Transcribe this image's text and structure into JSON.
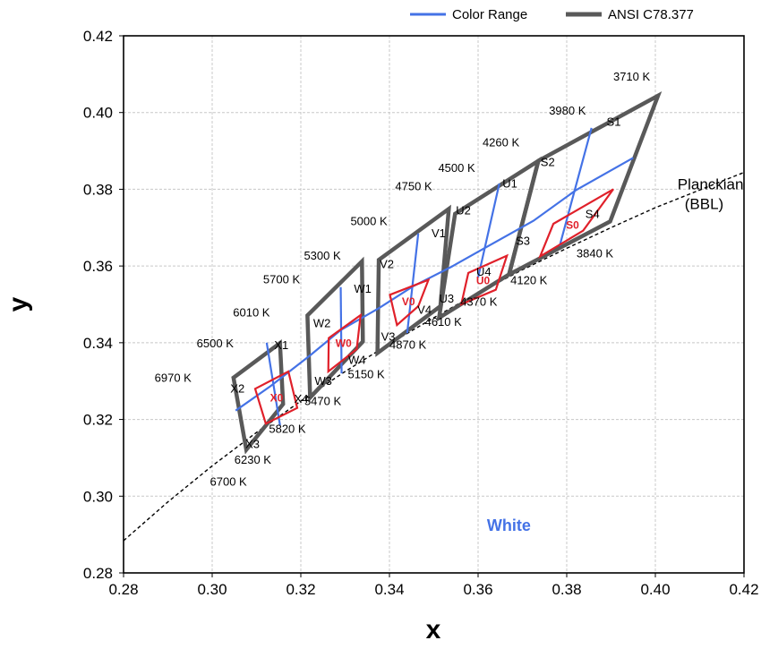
{
  "chart_data": {
    "type": "line",
    "xlabel": "x",
    "ylabel": "y",
    "xlim": [
      0.28,
      0.42
    ],
    "ylim": [
      0.28,
      0.42
    ],
    "xticks": [
      0.28,
      0.3,
      0.32,
      0.34,
      0.36,
      0.38,
      0.4,
      0.42
    ],
    "yticks": [
      0.28,
      0.3,
      0.32,
      0.34,
      0.36,
      0.38,
      0.4,
      0.42
    ],
    "xtick_labels": [
      "0.28",
      "0.30",
      "0.32",
      "0.34",
      "0.36",
      "0.38",
      "0.40",
      "0.42"
    ],
    "ytick_labels": [
      "0.28",
      "0.30",
      "0.32",
      "0.34",
      "0.36",
      "0.38",
      "0.40",
      "0.42"
    ],
    "grid": true,
    "legend_position": "top-right",
    "legend": [
      {
        "label": "Color Range",
        "color": "#4472e6"
      },
      {
        "label": "ANSI C78.377",
        "color": "#595959"
      }
    ],
    "colors": {
      "ansi": "#595959",
      "range": "#4472e6",
      "bin": "#e0202a",
      "planckian": "#000000"
    },
    "region_label": {
      "text": "White",
      "color": "#4472e6",
      "x": 0.362,
      "y": 0.291
    },
    "planckian_label": {
      "line1": "Planckian",
      "line2": "(BBL)",
      "x": 0.405,
      "y": 0.38
    },
    "planckian": [
      [
        0.28,
        0.2884
      ],
      [
        0.29,
        0.2985
      ],
      [
        0.3,
        0.3079
      ],
      [
        0.31,
        0.3166
      ],
      [
        0.32,
        0.3248
      ],
      [
        0.33,
        0.3325
      ],
      [
        0.34,
        0.3397
      ],
      [
        0.35,
        0.3465
      ],
      [
        0.36,
        0.353
      ],
      [
        0.37,
        0.359
      ],
      [
        0.38,
        0.3646
      ],
      [
        0.39,
        0.37
      ],
      [
        0.4,
        0.3752
      ],
      [
        0.41,
        0.3798
      ],
      [
        0.42,
        0.3844
      ]
    ],
    "ansi_quads": [
      {
        "name": "X",
        "points": [
          [
            0.3048,
            0.3309
          ],
          [
            0.3153,
            0.3399
          ],
          [
            0.316,
            0.324
          ],
          [
            0.3077,
            0.3121
          ]
        ]
      },
      {
        "name": "W",
        "points": [
          [
            0.3215,
            0.3471
          ],
          [
            0.3338,
            0.3612
          ],
          [
            0.334,
            0.3403
          ],
          [
            0.3221,
            0.3257
          ]
        ]
      },
      {
        "name": "V",
        "points": [
          [
            0.3376,
            0.3616
          ],
          [
            0.3534,
            0.3749
          ],
          [
            0.3515,
            0.3495
          ],
          [
            0.3373,
            0.3373
          ]
        ]
      },
      {
        "name": "U",
        "points": [
          [
            0.3548,
            0.3736
          ],
          [
            0.3736,
            0.3874
          ],
          [
            0.367,
            0.3578
          ],
          [
            0.3512,
            0.3465
          ]
        ]
      },
      {
        "name": "S",
        "points": [
          [
            0.3736,
            0.3874
          ],
          [
            0.4006,
            0.4044
          ],
          [
            0.3898,
            0.3716
          ],
          [
            0.367,
            0.3578
          ]
        ]
      }
    ],
    "color_range_line": [
      [
        0.3053,
        0.3223
      ],
      [
        0.3132,
        0.3287
      ],
      [
        0.3221,
        0.3367
      ],
      [
        0.329,
        0.3433
      ],
      [
        0.3376,
        0.349
      ],
      [
        0.3453,
        0.3547
      ],
      [
        0.354,
        0.3598
      ],
      [
        0.362,
        0.365
      ],
      [
        0.3725,
        0.3718
      ],
      [
        0.382,
        0.3797
      ],
      [
        0.395,
        0.3882
      ]
    ],
    "blue_cross_lines": [
      [
        [
          0.3123,
          0.34
        ],
        [
          0.3153,
          0.3185
        ]
      ],
      [
        [
          0.329,
          0.3545
        ],
        [
          0.3292,
          0.332
        ]
      ],
      [
        [
          0.3465,
          0.3685
        ],
        [
          0.344,
          0.3425
        ]
      ],
      [
        [
          0.3648,
          0.3815
        ],
        [
          0.36,
          0.357
        ]
      ],
      [
        [
          0.3856,
          0.396
        ],
        [
          0.3784,
          0.3652
        ]
      ]
    ],
    "bins": [
      {
        "name": "X0",
        "points": [
          [
            0.3097,
            0.328
          ],
          [
            0.3172,
            0.3325
          ],
          [
            0.3192,
            0.323
          ],
          [
            0.3121,
            0.3189
          ]
        ]
      },
      {
        "name": "W0",
        "points": [
          [
            0.3263,
            0.3412
          ],
          [
            0.3335,
            0.3472
          ],
          [
            0.3326,
            0.3383
          ],
          [
            0.3262,
            0.3325
          ]
        ]
      },
      {
        "name": "V0",
        "points": [
          [
            0.3401,
            0.3525
          ],
          [
            0.3488,
            0.3564
          ],
          [
            0.3465,
            0.3495
          ],
          [
            0.3417,
            0.3446
          ]
        ]
      },
      {
        "name": "U0",
        "points": [
          [
            0.3578,
            0.3582
          ],
          [
            0.3665,
            0.3627
          ],
          [
            0.364,
            0.3538
          ],
          [
            0.3562,
            0.35
          ]
        ]
      },
      {
        "name": "S0",
        "points": [
          [
            0.377,
            0.371
          ],
          [
            0.3905,
            0.38
          ],
          [
            0.3837,
            0.3692
          ],
          [
            0.374,
            0.3625
          ]
        ]
      }
    ],
    "quad_labels": [
      {
        "text": "X1",
        "x": 0.314,
        "y": 0.3383
      },
      {
        "text": "X2",
        "x": 0.3041,
        "y": 0.327
      },
      {
        "text": "X3",
        "x": 0.3075,
        "y": 0.3125
      },
      {
        "text": "X4",
        "x": 0.3185,
        "y": 0.3243
      },
      {
        "text": "W1",
        "x": 0.332,
        "y": 0.353
      },
      {
        "text": "W2",
        "x": 0.3228,
        "y": 0.344
      },
      {
        "text": "W3",
        "x": 0.3231,
        "y": 0.329
      },
      {
        "text": "W4",
        "x": 0.3307,
        "y": 0.3345
      },
      {
        "text": "V1",
        "x": 0.3495,
        "y": 0.3675
      },
      {
        "text": "V2",
        "x": 0.3378,
        "y": 0.3595
      },
      {
        "text": "V3",
        "x": 0.3381,
        "y": 0.3405
      },
      {
        "text": "V4",
        "x": 0.3463,
        "y": 0.3475
      },
      {
        "text": "U1",
        "x": 0.3655,
        "y": 0.3805
      },
      {
        "text": "U2",
        "x": 0.355,
        "y": 0.3735
      },
      {
        "text": "U3",
        "x": 0.3512,
        "y": 0.3505
      },
      {
        "text": "U4",
        "x": 0.3596,
        "y": 0.3575
      },
      {
        "text": "S1",
        "x": 0.389,
        "y": 0.3965
      },
      {
        "text": "S2",
        "x": 0.3741,
        "y": 0.386
      },
      {
        "text": "S3",
        "x": 0.3685,
        "y": 0.3655
      },
      {
        "text": "S4",
        "x": 0.3842,
        "y": 0.3725
      }
    ],
    "cct_labels": [
      {
        "text": "3710 K",
        "x": 0.3905,
        "y": 0.4083
      },
      {
        "text": "3980 K",
        "x": 0.376,
        "y": 0.3995
      },
      {
        "text": "4260 K",
        "x": 0.361,
        "y": 0.3912
      },
      {
        "text": "4500 K",
        "x": 0.351,
        "y": 0.3845
      },
      {
        "text": "4750 K",
        "x": 0.3413,
        "y": 0.3797
      },
      {
        "text": "5000 K",
        "x": 0.3312,
        "y": 0.3707
      },
      {
        "text": "5300 K",
        "x": 0.3207,
        "y": 0.3617
      },
      {
        "text": "5700 K",
        "x": 0.3115,
        "y": 0.3555
      },
      {
        "text": "6010 K",
        "x": 0.3047,
        "y": 0.3468
      },
      {
        "text": "6500 K",
        "x": 0.2965,
        "y": 0.3388
      },
      {
        "text": "6970 K",
        "x": 0.287,
        "y": 0.3298
      },
      {
        "text": "3840 K",
        "x": 0.3822,
        "y": 0.3622
      },
      {
        "text": "4120 K",
        "x": 0.3673,
        "y": 0.3552
      },
      {
        "text": "4370 K",
        "x": 0.356,
        "y": 0.3497
      },
      {
        "text": "4610 K",
        "x": 0.348,
        "y": 0.3444
      },
      {
        "text": "4870 K",
        "x": 0.34,
        "y": 0.3385
      },
      {
        "text": "5150 K",
        "x": 0.3306,
        "y": 0.3307
      },
      {
        "text": "5470 K",
        "x": 0.3208,
        "y": 0.3238
      },
      {
        "text": "5820 K",
        "x": 0.3128,
        "y": 0.3165
      },
      {
        "text": "6230 K",
        "x": 0.305,
        "y": 0.3085
      },
      {
        "text": "6700 K",
        "x": 0.2995,
        "y": 0.3028
      }
    ]
  }
}
